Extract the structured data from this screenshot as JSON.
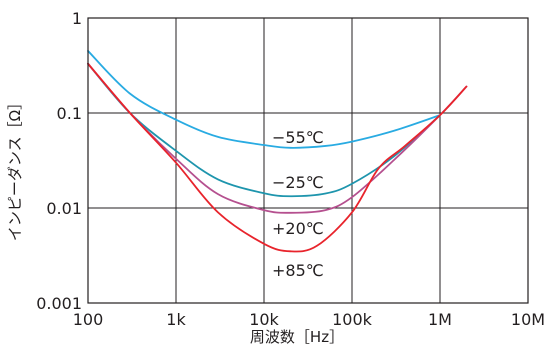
{
  "chart_data": {
    "type": "line",
    "xlabel": "周波数［Hz］",
    "ylabel": "インピーダンス［Ω］",
    "x_scale": "log",
    "y_scale": "log",
    "xlim": [
      100,
      10000000
    ],
    "ylim": [
      0.001,
      1
    ],
    "x_ticks": [
      {
        "value": 100,
        "label": "100"
      },
      {
        "value": 1000,
        "label": "1k"
      },
      {
        "value": 10000,
        "label": "10k"
      },
      {
        "value": 100000,
        "label": "100k"
      },
      {
        "value": 1000000,
        "label": "1M"
      },
      {
        "value": 10000000,
        "label": "10M"
      }
    ],
    "y_ticks": [
      {
        "value": 1,
        "label": "1"
      },
      {
        "value": 0.1,
        "label": "0.1"
      },
      {
        "value": 0.01,
        "label": "0.01"
      },
      {
        "value": 0.001,
        "label": "0.001"
      }
    ],
    "grid": true,
    "series": [
      {
        "name": "−55℃",
        "color": "#29abe2",
        "points": [
          [
            100,
            0.45
          ],
          [
            300,
            0.16
          ],
          [
            1000,
            0.085
          ],
          [
            3000,
            0.056
          ],
          [
            10000,
            0.046
          ],
          [
            20000,
            0.043
          ],
          [
            50000,
            0.045
          ],
          [
            100000,
            0.05
          ],
          [
            300000,
            0.065
          ],
          [
            1000000,
            0.095
          ]
        ]
      },
      {
        "name": "−25℃",
        "color": "#1e95ad",
        "points": [
          [
            100,
            0.33
          ],
          [
            300,
            0.1
          ],
          [
            1000,
            0.04
          ],
          [
            3000,
            0.02
          ],
          [
            10000,
            0.0143
          ],
          [
            20000,
            0.0133
          ],
          [
            50000,
            0.0142
          ],
          [
            100000,
            0.018
          ],
          [
            300000,
            0.035
          ],
          [
            1000000,
            0.095
          ]
        ]
      },
      {
        "name": "+20℃",
        "color": "#b5508f",
        "points": [
          [
            100,
            0.33
          ],
          [
            300,
            0.1
          ],
          [
            1000,
            0.033
          ],
          [
            3000,
            0.014
          ],
          [
            10000,
            0.0095
          ],
          [
            20000,
            0.0089
          ],
          [
            50000,
            0.0095
          ],
          [
            100000,
            0.013
          ],
          [
            300000,
            0.032
          ],
          [
            1000000,
            0.095
          ],
          [
            2000000,
            0.19
          ]
        ]
      },
      {
        "name": "+85℃",
        "color": "#e8242c",
        "points": [
          [
            100,
            0.33
          ],
          [
            300,
            0.1
          ],
          [
            1000,
            0.03
          ],
          [
            3000,
            0.009
          ],
          [
            10000,
            0.0042
          ],
          [
            20000,
            0.0035
          ],
          [
            40000,
            0.004
          ],
          [
            100000,
            0.009
          ],
          [
            200000,
            0.026
          ],
          [
            400000,
            0.045
          ],
          [
            1000000,
            0.095
          ],
          [
            2000000,
            0.19
          ]
        ]
      }
    ]
  },
  "labels": {
    "s0": "−55℃",
    "s1": "−25℃",
    "s2": "+20℃",
    "s3": "+85℃"
  }
}
